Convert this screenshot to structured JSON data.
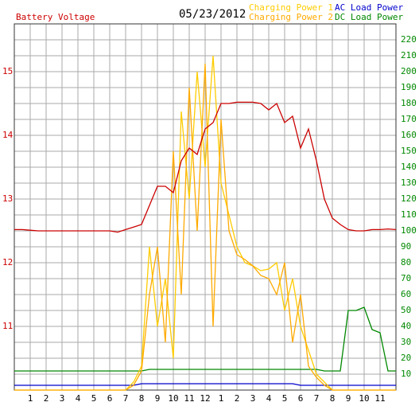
{
  "chart_data": {
    "type": "line",
    "title": "05/23/2012",
    "x": [
      0,
      0.5,
      1,
      1.5,
      2,
      2.5,
      3,
      3.5,
      4,
      4.5,
      5,
      5.5,
      6,
      6.5,
      7,
      7.5,
      8,
      8.5,
      9,
      9.5,
      10,
      10.5,
      11,
      11.5,
      12,
      12.5,
      13,
      13.5,
      14,
      14.5,
      15,
      15.5,
      16,
      16.5,
      17,
      17.5,
      18,
      18.5,
      19,
      19.5,
      20,
      20.5,
      21,
      21.5,
      22,
      22.5,
      23,
      23.5,
      24
    ],
    "xlim": [
      0,
      24
    ],
    "xticks": [
      1,
      2,
      3,
      4,
      5,
      6,
      7,
      8,
      9,
      10,
      11,
      12,
      {
        "value": 13,
        "label": "1"
      },
      {
        "value": 14,
        "label": "2"
      },
      {
        "value": 15,
        "label": "3"
      },
      {
        "value": 16,
        "label": "4"
      },
      {
        "value": 17,
        "label": "5"
      },
      {
        "value": 18,
        "label": "6"
      },
      {
        "value": 19,
        "label": "7"
      },
      {
        "value": 20,
        "label": "8"
      },
      {
        "value": 21,
        "label": "9"
      },
      {
        "value": 22,
        "label": "10"
      },
      {
        "value": 23,
        "label": "11"
      }
    ],
    "ylim": [
      10,
      15.75
    ],
    "yticks": [
      11,
      12,
      13,
      14,
      15
    ],
    "y2lim": [
      0,
      230
    ],
    "y2ticks": [
      10,
      20,
      30,
      40,
      50,
      60,
      70,
      80,
      90,
      100,
      110,
      120,
      130,
      140,
      150,
      160,
      170,
      180,
      190,
      200,
      210,
      220
    ],
    "grid": true,
    "legend": "top-right",
    "series": [
      {
        "name": "Battery Voltage",
        "color": "#cc0000",
        "values": [
          12.52,
          12.52,
          12.51,
          12.5,
          12.5,
          12.5,
          12.5,
          12.5,
          12.5,
          12.5,
          12.5,
          12.5,
          12.5,
          12.48,
          12.52,
          12.56,
          12.6,
          12.9,
          13.2,
          13.2,
          13.1,
          13.6,
          13.8,
          13.7,
          14.1,
          14.2,
          14.5,
          14.5,
          14.52,
          14.52,
          14.52,
          14.5,
          14.4,
          14.5,
          14.2,
          14.3,
          13.8,
          14.1,
          13.6,
          13.0,
          12.7,
          12.6,
          12.52,
          12.5,
          12.5,
          12.52,
          12.52,
          12.53,
          12.52
        ]
      },
      {
        "name": "Charging Power 1",
        "color": "#ffcc00",
        "axis": "y2",
        "values": [
          0,
          0,
          0,
          0,
          0,
          0,
          0,
          0,
          0,
          0,
          0,
          0,
          0,
          0,
          0,
          5,
          15,
          90,
          40,
          70,
          20,
          175,
          120,
          200,
          140,
          210,
          130,
          110,
          90,
          80,
          78,
          75,
          76,
          80,
          50,
          70,
          40,
          25,
          10,
          5,
          0,
          0,
          0,
          0,
          0,
          0,
          0,
          0,
          0
        ]
      },
      {
        "name": "Charging Power 2",
        "color": "#ffaa00",
        "axis": "y2",
        "values": [
          0,
          0,
          0,
          0,
          0,
          0,
          0,
          0,
          0,
          0,
          0,
          0,
          0,
          0,
          0,
          3,
          12,
          60,
          90,
          30,
          150,
          60,
          190,
          100,
          205,
          40,
          170,
          100,
          85,
          82,
          78,
          72,
          70,
          60,
          80,
          30,
          60,
          15,
          8,
          3,
          0,
          0,
          0,
          0,
          0,
          0,
          0,
          0,
          0
        ]
      },
      {
        "name": "AC Load Power",
        "color": "#0000cc",
        "axis": "y2",
        "values": [
          3,
          3,
          3,
          3,
          3,
          3,
          3,
          3,
          3,
          3,
          3,
          3,
          3,
          3,
          3,
          3,
          4,
          4,
          4,
          4,
          4,
          4,
          4,
          4,
          4,
          4,
          4,
          4,
          4,
          4,
          4,
          4,
          4,
          4,
          4,
          4,
          3,
          3,
          3,
          3,
          3,
          3,
          3,
          3,
          3,
          3,
          3,
          3,
          3
        ]
      },
      {
        "name": "DC Load Power",
        "color": "#008800",
        "axis": "y2",
        "values": [
          12,
          12,
          12,
          12,
          12,
          12,
          12,
          12,
          12,
          12,
          12,
          12,
          12,
          12,
          12,
          12,
          12,
          13,
          13,
          13,
          13,
          13,
          13,
          13,
          13,
          13,
          13,
          13,
          13,
          13,
          13,
          13,
          13,
          13,
          13,
          13,
          13,
          13,
          13,
          12,
          12,
          12,
          50,
          50,
          52,
          38,
          36,
          12,
          12
        ]
      }
    ]
  }
}
